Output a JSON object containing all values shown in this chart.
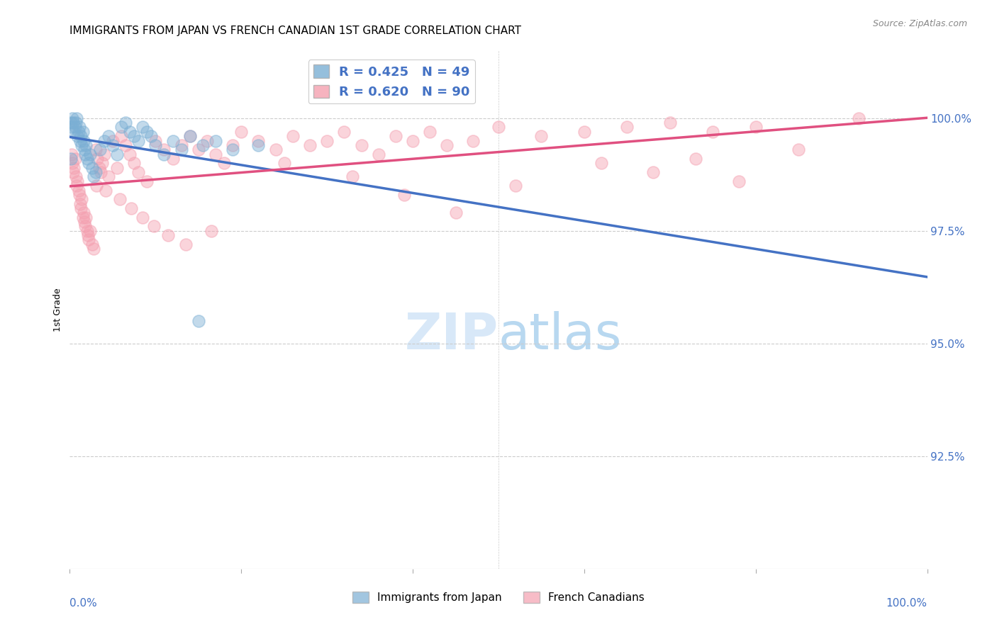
{
  "title": "IMMIGRANTS FROM JAPAN VS FRENCH CANADIAN 1ST GRADE CORRELATION CHART",
  "source": "Source: ZipAtlas.com",
  "ylabel": "1st Grade",
  "ytick_labels": [
    "92.5%",
    "95.0%",
    "97.5%",
    "100.0%"
  ],
  "ytick_values": [
    92.5,
    95.0,
    97.5,
    100.0
  ],
  "xlim": [
    0.0,
    100.0
  ],
  "ylim": [
    90.0,
    101.5
  ],
  "legend_label_blue": "Immigrants from Japan",
  "legend_label_pink": "French Canadians",
  "R_blue": 0.425,
  "N_blue": 49,
  "R_pink": 0.62,
  "N_pink": 90,
  "color_blue": "#7BAFD4",
  "color_pink": "#F4A0B0",
  "trendline_blue": "#4472C4",
  "trendline_pink": "#E05080",
  "blue_x": [
    0.1,
    0.2,
    0.3,
    0.4,
    0.5,
    0.6,
    0.7,
    0.8,
    0.9,
    1.0,
    1.1,
    1.2,
    1.3,
    1.4,
    1.5,
    1.6,
    1.7,
    1.8,
    1.9,
    2.0,
    2.2,
    2.4,
    2.6,
    2.8,
    3.0,
    3.5,
    4.0,
    4.5,
    5.0,
    5.5,
    6.0,
    6.5,
    7.0,
    7.5,
    8.0,
    8.5,
    9.0,
    9.5,
    10.0,
    11.0,
    12.0,
    13.0,
    14.0,
    15.5,
    17.0,
    19.0,
    22.0,
    0.15,
    15.0
  ],
  "blue_y": [
    99.9,
    99.8,
    100.0,
    99.9,
    99.7,
    99.8,
    99.9,
    100.0,
    99.6,
    99.7,
    99.8,
    99.5,
    99.6,
    99.4,
    99.7,
    99.5,
    99.3,
    99.2,
    99.4,
    99.1,
    99.0,
    99.2,
    98.9,
    98.7,
    98.8,
    99.3,
    99.5,
    99.6,
    99.4,
    99.2,
    99.8,
    99.9,
    99.7,
    99.6,
    99.5,
    99.8,
    99.7,
    99.6,
    99.4,
    99.2,
    99.5,
    99.3,
    99.6,
    99.4,
    99.5,
    99.3,
    99.4,
    99.1,
    95.5
  ],
  "pink_x": [
    0.2,
    0.3,
    0.4,
    0.5,
    0.6,
    0.7,
    0.8,
    0.9,
    1.0,
    1.1,
    1.2,
    1.3,
    1.4,
    1.5,
    1.6,
    1.7,
    1.8,
    1.9,
    2.0,
    2.1,
    2.2,
    2.4,
    2.6,
    2.8,
    3.0,
    3.2,
    3.4,
    3.6,
    3.8,
    4.0,
    4.5,
    5.0,
    5.5,
    6.0,
    6.5,
    7.0,
    7.5,
    8.0,
    9.0,
    10.0,
    11.0,
    12.0,
    13.0,
    14.0,
    15.0,
    16.0,
    17.0,
    18.0,
    19.0,
    20.0,
    22.0,
    24.0,
    26.0,
    28.0,
    30.0,
    32.0,
    34.0,
    36.0,
    38.0,
    40.0,
    42.0,
    44.0,
    47.0,
    50.0,
    55.0,
    60.0,
    65.0,
    70.0,
    75.0,
    80.0,
    3.1,
    4.2,
    5.8,
    7.2,
    8.5,
    9.8,
    11.5,
    13.5,
    16.5,
    25.0,
    33.0,
    39.0,
    45.0,
    52.0,
    62.0,
    68.0,
    73.0,
    78.0,
    85.0,
    92.0
  ],
  "pink_y": [
    99.2,
    99.0,
    98.8,
    98.9,
    99.1,
    98.7,
    98.5,
    98.6,
    98.4,
    98.3,
    98.1,
    98.0,
    98.2,
    97.8,
    97.9,
    97.7,
    97.6,
    97.8,
    97.5,
    97.4,
    97.3,
    97.5,
    97.2,
    97.1,
    99.3,
    99.1,
    98.9,
    98.8,
    99.0,
    99.2,
    98.7,
    99.5,
    98.9,
    99.6,
    99.4,
    99.2,
    99.0,
    98.8,
    98.6,
    99.5,
    99.3,
    99.1,
    99.4,
    99.6,
    99.3,
    99.5,
    99.2,
    99.0,
    99.4,
    99.7,
    99.5,
    99.3,
    99.6,
    99.4,
    99.5,
    99.7,
    99.4,
    99.2,
    99.6,
    99.5,
    99.7,
    99.4,
    99.5,
    99.8,
    99.6,
    99.7,
    99.8,
    99.9,
    99.7,
    99.8,
    98.5,
    98.4,
    98.2,
    98.0,
    97.8,
    97.6,
    97.4,
    97.2,
    97.5,
    99.0,
    98.7,
    98.3,
    97.9,
    98.5,
    99.0,
    98.8,
    99.1,
    98.6,
    99.3,
    100.0
  ],
  "watermark_text": "ZIPatlas",
  "watermark_color": "#D8E8F8"
}
